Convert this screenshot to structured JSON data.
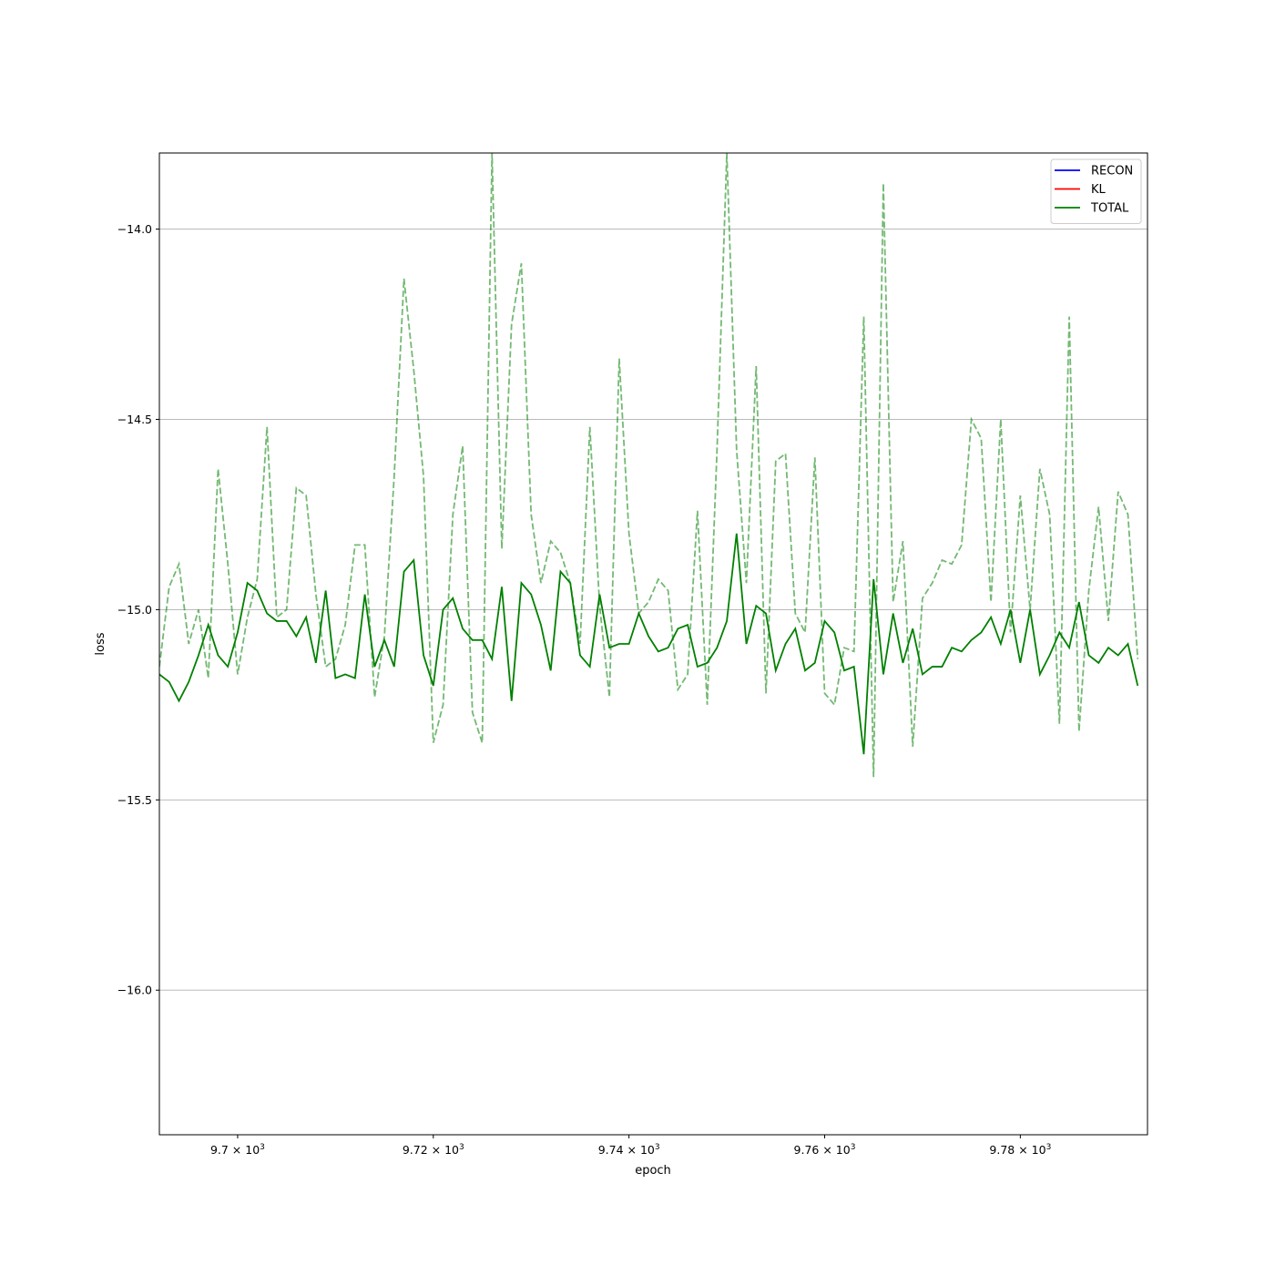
{
  "chart_data": {
    "type": "line",
    "xlabel": "epoch",
    "ylabel": "loss",
    "xlim": [
      9692,
      9793
    ],
    "ylim": [
      -16.38,
      -13.8
    ],
    "x_ticks": [
      {
        "value": 9700,
        "mantissa": "9.7",
        "base": "10",
        "exp": "3"
      },
      {
        "value": 9720,
        "mantissa": "9.72",
        "base": "10",
        "exp": "3"
      },
      {
        "value": 9740,
        "mantissa": "9.74",
        "base": "10",
        "exp": "3"
      },
      {
        "value": 9760,
        "mantissa": "9.76",
        "base": "10",
        "exp": "3"
      },
      {
        "value": 9780,
        "mantissa": "9.78",
        "base": "10",
        "exp": "3"
      }
    ],
    "y_ticks": [
      {
        "value": -14.0,
        "label": "−14.0"
      },
      {
        "value": -14.5,
        "label": "−14.5"
      },
      {
        "value": -15.0,
        "label": "−15.0"
      },
      {
        "value": -15.5,
        "label": "−15.5"
      },
      {
        "value": -16.0,
        "label": "−16.0"
      }
    ],
    "grid": "horizontal",
    "legend_position": "top-right",
    "x_start": 9692,
    "series": [
      {
        "name": "RECON",
        "color": "#0000ff",
        "style": "solid",
        "values": []
      },
      {
        "name": "KL",
        "color": "#ff0000",
        "style": "solid",
        "values": []
      },
      {
        "name": "TOTAL",
        "color": "#008000",
        "style": "solid",
        "values": [
          -15.17,
          -15.19,
          -15.24,
          -15.19,
          -15.12,
          -15.04,
          -15.12,
          -15.15,
          -15.06,
          -14.93,
          -14.95,
          -15.01,
          -15.03,
          -15.03,
          -15.07,
          -15.02,
          -15.14,
          -14.95,
          -15.18,
          -15.17,
          -15.18,
          -14.96,
          -15.15,
          -15.08,
          -15.15,
          -14.9,
          -14.87,
          -15.12,
          -15.2,
          -15.0,
          -14.97,
          -15.05,
          -15.08,
          -15.08,
          -15.13,
          -14.94,
          -15.24,
          -14.93,
          -14.96,
          -15.04,
          -15.16,
          -14.9,
          -14.93,
          -15.12,
          -15.15,
          -14.96,
          -15.1,
          -15.09,
          -15.09,
          -15.01,
          -15.07,
          -15.11,
          -15.1,
          -15.05,
          -15.04,
          -15.15,
          -15.14,
          -15.1,
          -15.03,
          -14.8,
          -15.09,
          -14.99,
          -15.01,
          -15.16,
          -15.09,
          -15.05,
          -15.16,
          -15.14,
          -15.03,
          -15.06,
          -15.16,
          -15.15,
          -15.38,
          -14.92,
          -15.17,
          -15.01,
          -15.14,
          -15.05,
          -15.17,
          -15.15,
          -15.15,
          -15.1,
          -15.11,
          -15.08,
          -15.06,
          -15.02,
          -15.09,
          -15.0,
          -15.14,
          -15.0,
          -15.17,
          -15.12,
          -15.06,
          -15.1,
          -14.98,
          -15.12,
          -15.14,
          -15.1,
          -15.12,
          -15.09,
          -15.2
        ]
      },
      {
        "name": "",
        "color": "#008000",
        "style": "dashed",
        "opacity": 0.55,
        "values": [
          -15.15,
          -14.94,
          -14.88,
          -15.09,
          -15.0,
          -15.18,
          -14.63,
          -14.88,
          -15.17,
          -15.02,
          -14.92,
          -14.52,
          -15.02,
          -15.0,
          -14.68,
          -14.7,
          -14.96,
          -15.15,
          -15.13,
          -15.04,
          -14.83,
          -14.83,
          -15.23,
          -15.07,
          -14.65,
          -14.13,
          -14.37,
          -14.65,
          -15.35,
          -15.25,
          -14.75,
          -14.57,
          -15.27,
          -15.35,
          -13.8,
          -14.84,
          -14.25,
          -14.09,
          -14.75,
          -14.93,
          -14.82,
          -14.85,
          -14.93,
          -15.09,
          -14.52,
          -14.99,
          -15.23,
          -14.34,
          -14.8,
          -15.01,
          -14.98,
          -14.92,
          -14.95,
          -15.21,
          -15.17,
          -14.74,
          -15.25,
          -14.58,
          -13.8,
          -14.58,
          -14.93,
          -14.36,
          -15.22,
          -14.61,
          -14.59,
          -15.01,
          -15.06,
          -14.6,
          -15.22,
          -15.25,
          -15.1,
          -15.11,
          -14.23,
          -15.44,
          -13.88,
          -14.98,
          -14.82,
          -15.36,
          -14.97,
          -14.93,
          -14.87,
          -14.88,
          -14.83,
          -14.5,
          -14.55,
          -14.98,
          -14.5,
          -15.06,
          -14.7,
          -15.0,
          -14.63,
          -14.75,
          -15.3,
          -14.23,
          -15.32,
          -14.95,
          -14.73,
          -15.03,
          -14.69,
          -14.75,
          -15.13
        ]
      }
    ]
  }
}
